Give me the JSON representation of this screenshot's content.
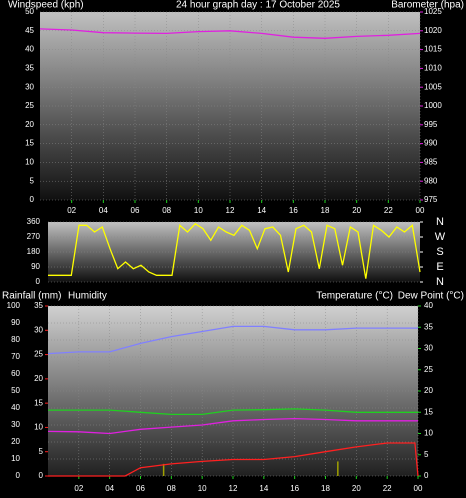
{
  "chart_data": [
    {
      "type": "line",
      "ylabel": "Windspeed (kph)",
      "title": "24 hour graph day : 17 October 2025",
      "x": [
        0,
        2,
        4,
        6,
        8,
        10,
        12,
        14,
        16,
        18,
        20,
        22,
        24
      ],
      "xlim": [
        0,
        24
      ],
      "xticks": [
        {
          "value": 2,
          "label": "02"
        },
        {
          "value": 4,
          "label": "04"
        },
        {
          "value": 6,
          "label": "06"
        },
        {
          "value": 8,
          "label": "08"
        },
        10,
        12,
        14,
        16,
        18,
        20,
        22,
        {
          "value": 24,
          "label": "00"
        }
      ],
      "ylim": [
        0,
        50
      ],
      "yticks": [
        0,
        5,
        10,
        15,
        20,
        25,
        30,
        35,
        40,
        45,
        50
      ],
      "y2lim": [
        975,
        1025
      ],
      "y2ticks": [
        975,
        980,
        985,
        990,
        995,
        1000,
        1005,
        1010,
        1015,
        1020,
        1025
      ],
      "grid": true,
      "series": [
        {
          "name": "Barometer (hpa)",
          "color": "#e020e0",
          "axis": "y2",
          "values": [
            1020.5,
            1020.2,
            1019.5,
            1019.4,
            1019.3,
            1019.8,
            1020,
            1019.3,
            1018.3,
            1018,
            1018.5,
            1018.8,
            1019.3
          ]
        }
      ]
    },
    {
      "type": "line",
      "x": [
        0,
        0.5,
        1,
        1.5,
        2,
        2.5,
        3,
        3.5,
        4,
        4.5,
        5,
        5.5,
        6,
        6.5,
        7,
        7.5,
        8,
        8.5,
        9,
        9.5,
        10,
        10.5,
        11,
        11.5,
        12,
        12.5,
        13,
        13.5,
        14,
        14.5,
        15,
        15.5,
        16,
        16.5,
        17,
        17.5,
        18,
        18.5,
        19,
        19.5,
        20,
        20.5,
        21,
        21.5,
        22,
        22.5,
        23,
        23.5,
        24
      ],
      "xlim": [
        0,
        24
      ],
      "ylim": [
        0,
        360
      ],
      "yticks": [
        0,
        90,
        180,
        270,
        360
      ],
      "y2lim": [
        0,
        360
      ],
      "y2ticks": [
        {
          "value": 360,
          "label": "N"
        },
        {
          "value": 270,
          "label": "W"
        },
        {
          "value": 180,
          "label": "S"
        },
        {
          "value": 90,
          "label": "E"
        },
        {
          "value": 0,
          "label": "N"
        }
      ],
      "grid": true,
      "series": [
        {
          "color": "#ffff00",
          "values": [
            40,
            40,
            40,
            40,
            340,
            340,
            300,
            330,
            200,
            80,
            120,
            80,
            100,
            60,
            40,
            40,
            40,
            340,
            300,
            350,
            320,
            250,
            330,
            300,
            280,
            340,
            310,
            200,
            320,
            330,
            280,
            60,
            320,
            340,
            300,
            80,
            340,
            320,
            100,
            330,
            300,
            20,
            340,
            310,
            270,
            330,
            300,
            340,
            60
          ]
        }
      ]
    },
    {
      "type": "line",
      "x": [
        0,
        2,
        4,
        6,
        8,
        10,
        12,
        14,
        16,
        18,
        20,
        22,
        24
      ],
      "xlim": [
        0,
        24
      ],
      "xticks": [
        {
          "value": 2,
          "label": "02"
        },
        {
          "value": 4,
          "label": "04"
        },
        {
          "value": 6,
          "label": "06"
        },
        {
          "value": 8,
          "label": "08"
        },
        10,
        12,
        14,
        16,
        18,
        20,
        22,
        {
          "value": 24,
          "label": "00"
        }
      ],
      "ylim": [
        0,
        100
      ],
      "yticks": [
        0,
        10,
        20,
        30,
        40,
        50,
        60,
        70,
        80,
        90,
        100
      ],
      "y3lim": [
        0,
        35
      ],
      "y3ticks": [
        0,
        5,
        10,
        15,
        20,
        25,
        30,
        35
      ],
      "y2lim": [
        0,
        40
      ],
      "y2ticks": [
        0,
        5,
        10,
        15,
        20,
        25,
        30,
        35,
        40
      ],
      "grid": true,
      "series": [
        {
          "name": "Rainfall (mm)",
          "color": "#ff2020",
          "axis": "y3",
          "x": [
            0,
            5,
            6,
            8,
            10,
            12,
            14,
            16,
            18,
            20,
            22,
            23.8,
            24
          ],
          "values": [
            0,
            0,
            1.7,
            2.5,
            3,
            3.4,
            3.4,
            4,
            5,
            6,
            6.8,
            6.8,
            0
          ]
        },
        {
          "name": "Humidity",
          "color": "#8080ff",
          "axis": "y",
          "values": [
            72,
            73,
            73,
            78,
            82,
            85,
            88,
            88,
            86,
            86,
            87,
            87,
            87
          ]
        },
        {
          "name": "Temperature (°C)",
          "color": "#20d020",
          "axis": "y2",
          "values": [
            15.5,
            15.5,
            15.5,
            15,
            14.5,
            14.5,
            15.5,
            15.6,
            15.8,
            15.5,
            15,
            15,
            15
          ]
        },
        {
          "name": "Dew Point (°C)",
          "color": "#e020e0",
          "axis": "y2",
          "values": [
            10.5,
            10.4,
            10,
            11,
            11.5,
            12,
            13,
            13.3,
            13.5,
            13.3,
            13,
            13,
            13
          ]
        }
      ],
      "bars": {
        "color": "#a0a000",
        "axis": "y3",
        "x": [
          7.5,
          18.8
        ],
        "values": [
          2.5,
          3
        ]
      }
    }
  ]
}
